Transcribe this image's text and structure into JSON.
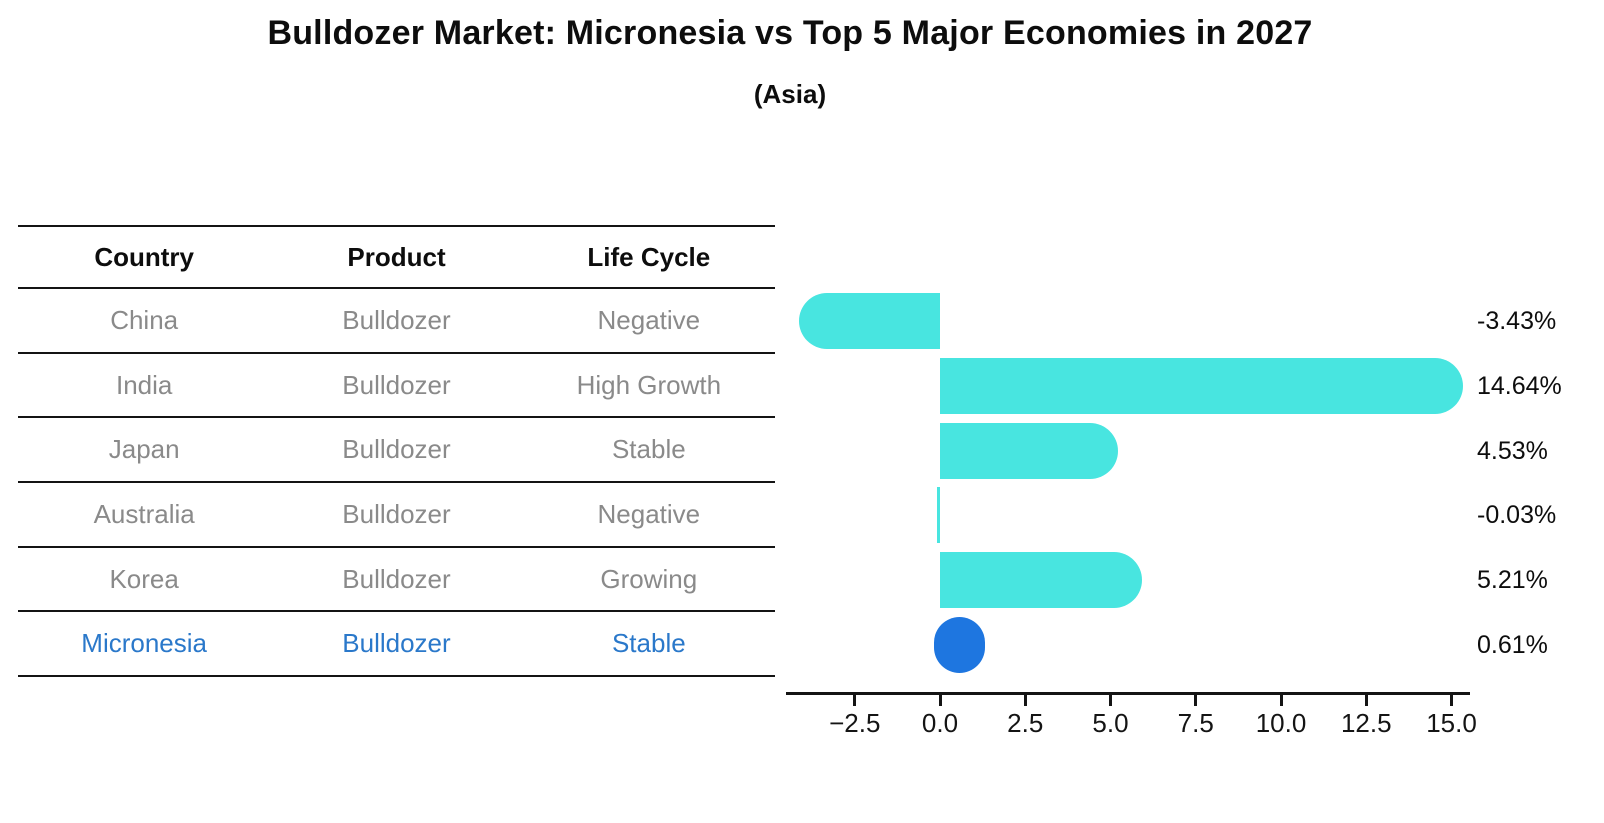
{
  "title": "Bulldozer Market: Micronesia vs Top 5 Major Economies in 2027",
  "subtitle": "(Asia)",
  "table": {
    "headers": [
      "Country",
      "Product",
      "Life Cycle"
    ],
    "rows": [
      {
        "country": "China",
        "product": "Bulldozer",
        "life_cycle": "Negative",
        "highlight": false
      },
      {
        "country": "India",
        "product": "Bulldozer",
        "life_cycle": "High Growth",
        "highlight": false
      },
      {
        "country": "Japan",
        "product": "Bulldozer",
        "life_cycle": "Stable",
        "highlight": false
      },
      {
        "country": "Australia",
        "product": "Bulldozer",
        "life_cycle": "Negative",
        "highlight": false
      },
      {
        "country": "Korea",
        "product": "Bulldozer",
        "life_cycle": "Growing",
        "highlight": false
      },
      {
        "country": "Micronesia",
        "product": "Bulldozer",
        "life_cycle": "Stable",
        "highlight": true
      }
    ]
  },
  "chart_data": {
    "type": "bar",
    "orientation": "horizontal",
    "title": "Bulldozer Market: Micronesia vs Top 5 Major Economies in 2027",
    "subtitle": "(Asia)",
    "categories": [
      "China",
      "India",
      "Japan",
      "Australia",
      "Korea",
      "Micronesia"
    ],
    "values": [
      -3.43,
      14.64,
      4.53,
      -0.03,
      5.21,
      0.61
    ],
    "value_labels": [
      "-3.43%",
      "14.64%",
      "4.53%",
      "-0.03%",
      "5.21%",
      "0.61%"
    ],
    "x_ticks": [
      "−2.5",
      "0.0",
      "2.5",
      "5.0",
      "7.5",
      "10.0",
      "12.5",
      "15.0"
    ],
    "x_tick_values": [
      -2.5,
      0.0,
      2.5,
      5.0,
      7.5,
      10.0,
      12.5,
      15.0
    ],
    "xlim": [
      -4.5,
      15.5
    ],
    "grid": false,
    "legend": null,
    "highlight_index": 5,
    "bar_color": "#48e5e0",
    "highlight_color": "#1e76e0",
    "text_color": "#0d0d0d",
    "muted_text_color": "#8a8a8a",
    "highlight_text_color": "#2a78ca"
  }
}
